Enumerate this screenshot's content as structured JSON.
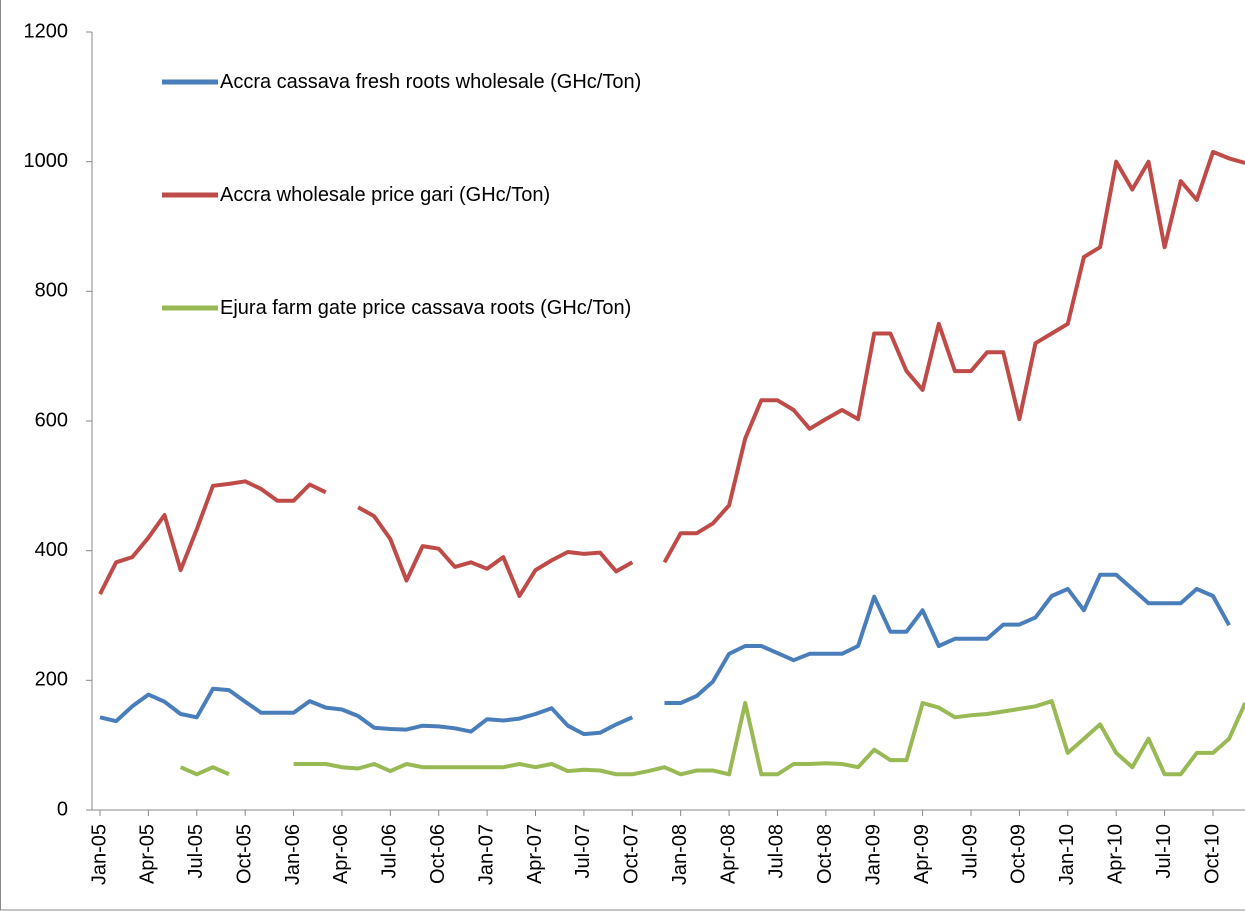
{
  "chart_data": {
    "type": "line",
    "categories": [
      "Jan-05",
      null,
      null,
      "Apr-05",
      null,
      null,
      "Jul-05",
      null,
      null,
      "Oct-05",
      null,
      null,
      "Jan-06",
      null,
      null,
      "Apr-06",
      null,
      null,
      "Jul-06",
      null,
      null,
      "Oct-06",
      null,
      null,
      "Jan-07",
      null,
      null,
      "Apr-07",
      null,
      null,
      "Jul-07",
      null,
      null,
      "Oct-07",
      null,
      null,
      "Jan-08",
      null,
      null,
      "Apr-08",
      null,
      null,
      "Jul-08",
      null,
      null,
      "Oct-08",
      null,
      null,
      "Jan-09",
      null,
      null,
      "Apr-09",
      null,
      null,
      "Jul-09",
      null,
      null,
      "Oct-09",
      null,
      null,
      "Jan-10",
      null,
      null,
      "Apr-10",
      null,
      null,
      "Jul-10",
      null,
      null,
      "Oct-10",
      null,
      null
    ],
    "series": [
      {
        "name": "Accra cassava fresh roots wholesale (GHc/Ton)",
        "color": "#4a7ebb",
        "values": [
          143,
          137,
          160,
          178,
          167,
          148,
          143,
          187,
          185,
          167,
          150,
          150,
          150,
          168,
          158,
          155,
          145,
          127,
          125,
          124,
          130,
          129,
          126,
          121,
          140,
          138,
          141,
          148,
          157,
          130,
          117,
          119,
          132,
          143,
          null,
          165,
          165,
          176,
          198,
          241,
          253,
          253,
          242,
          231,
          241,
          241,
          241,
          253,
          329,
          275,
          275,
          308,
          253,
          264,
          264,
          264,
          286,
          286,
          297,
          330,
          341,
          308,
          363,
          363,
          341,
          319,
          319,
          319,
          341,
          330,
          285,
          null
        ]
      },
      {
        "name": "Accra wholesale price gari (GHc/Ton)",
        "color": "#be4b48",
        "values": [
          333,
          382,
          390,
          420,
          455,
          370,
          433,
          500,
          503,
          507,
          495,
          477,
          477,
          502,
          490,
          null,
          467,
          453,
          418,
          354,
          407,
          403,
          375,
          382,
          372,
          390,
          330,
          370,
          385,
          398,
          395,
          397,
          368,
          382,
          null,
          382,
          427,
          427,
          442,
          470,
          573,
          632,
          632,
          617,
          588,
          603,
          617,
          603,
          735,
          735,
          677,
          648,
          750,
          677,
          677,
          706,
          706,
          603,
          720,
          735,
          750,
          853,
          868,
          1000,
          957,
          1000,
          868,
          970,
          941,
          1015,
          1005,
          998
        ]
      },
      {
        "name": "Ejura farm gate price cassava roots (GHc/Ton)",
        "color": "#98b954",
        "values": [
          null,
          null,
          null,
          null,
          null,
          66,
          55,
          66,
          55,
          null,
          null,
          null,
          71,
          71,
          71,
          66,
          64,
          71,
          60,
          71,
          66,
          66,
          66,
          66,
          66,
          66,
          71,
          66,
          71,
          60,
          62,
          61,
          55,
          55,
          60,
          66,
          55,
          61,
          61,
          55,
          165,
          55,
          55,
          71,
          71,
          72,
          71,
          66,
          93,
          77,
          77,
          165,
          158,
          143,
          146,
          148,
          152,
          156,
          160,
          168,
          88,
          110,
          132,
          88,
          66,
          110,
          55,
          55,
          88,
          88,
          110,
          165
        ]
      }
    ],
    "ylim": [
      0,
      1200
    ],
    "yticks": [
      0,
      200,
      400,
      600,
      800,
      1000,
      1200
    ]
  }
}
